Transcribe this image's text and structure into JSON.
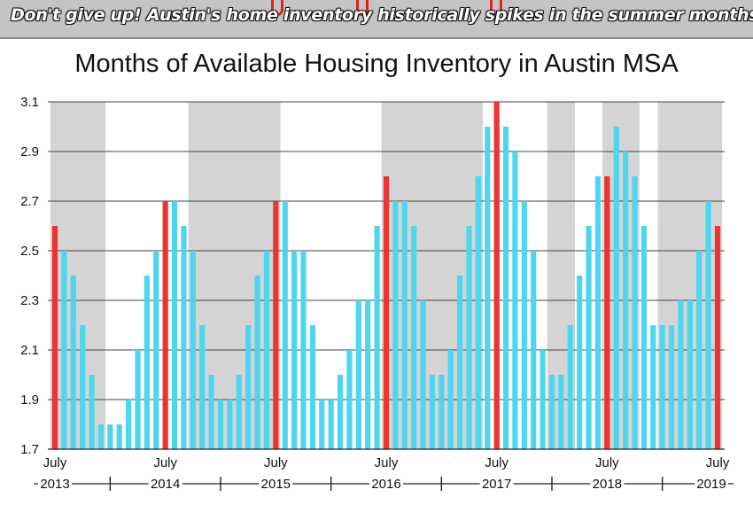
{
  "banner": {
    "text": "Don't give up! Austin's home inventory historically spikes in the summer months."
  },
  "colors": {
    "bar": "#4dd6ee",
    "highlight": "#ee3333",
    "band": "#d4d4d4",
    "grid": "#444444"
  },
  "chart_data": {
    "type": "bar",
    "title": "Months of Available Housing Inventory in Austin MSA",
    "xlabel": "",
    "ylabel": "",
    "ylim": [
      1.7,
      3.1
    ],
    "yticks": [
      1.7,
      1.9,
      2.1,
      2.3,
      2.5,
      2.7,
      2.9,
      3.1
    ],
    "ytick_labels": [
      "1.7",
      "1.9",
      "2.1",
      "2.3",
      "2.5",
      "2.7",
      "2.9",
      "3.1"
    ],
    "period": "monthly, July 2013 – July 2019",
    "values": [
      2.6,
      2.5,
      2.4,
      2.2,
      2.0,
      1.8,
      1.8,
      1.8,
      1.9,
      2.1,
      2.4,
      2.5,
      2.7,
      2.7,
      2.6,
      2.5,
      2.2,
      2.0,
      1.9,
      1.9,
      2.0,
      2.2,
      2.4,
      2.5,
      2.7,
      2.7,
      2.5,
      2.5,
      2.2,
      1.9,
      1.9,
      2.0,
      2.1,
      2.3,
      2.3,
      2.6,
      2.8,
      2.7,
      2.7,
      2.6,
      2.3,
      2.0,
      2.0,
      2.1,
      2.4,
      2.6,
      2.8,
      3.0,
      3.1,
      3.0,
      2.9,
      2.7,
      2.5,
      2.1,
      2.0,
      2.0,
      2.2,
      2.4,
      2.6,
      2.8,
      2.8,
      3.0,
      2.9,
      2.8,
      2.6,
      2.2,
      2.2,
      2.2,
      2.3,
      2.3,
      2.5,
      2.7,
      2.6
    ],
    "highlight_indices": [
      0,
      12,
      24,
      36,
      48,
      60,
      72
    ],
    "highlight_label": "July",
    "shaded_ranges": [
      [
        0,
        5
      ],
      [
        15,
        24
      ],
      [
        36,
        46
      ],
      [
        54,
        56
      ],
      [
        60,
        63
      ],
      [
        66,
        72
      ]
    ],
    "month_labels": [
      {
        "index": 0,
        "text": "July"
      },
      {
        "index": 12,
        "text": "July"
      },
      {
        "index": 24,
        "text": "July"
      },
      {
        "index": 36,
        "text": "July"
      },
      {
        "index": 48,
        "text": "July"
      },
      {
        "index": 60,
        "text": "July"
      },
      {
        "index": 72,
        "text": "July"
      }
    ],
    "year_labels": [
      {
        "index": 0,
        "text": "2013"
      },
      {
        "index": 12,
        "text": "2014"
      },
      {
        "index": 24,
        "text": "2015"
      },
      {
        "index": 36,
        "text": "2016"
      },
      {
        "index": 48,
        "text": "2017"
      },
      {
        "index": 60,
        "text": "2018"
      },
      {
        "index": 72,
        "text": "2019"
      }
    ],
    "grid": true
  }
}
